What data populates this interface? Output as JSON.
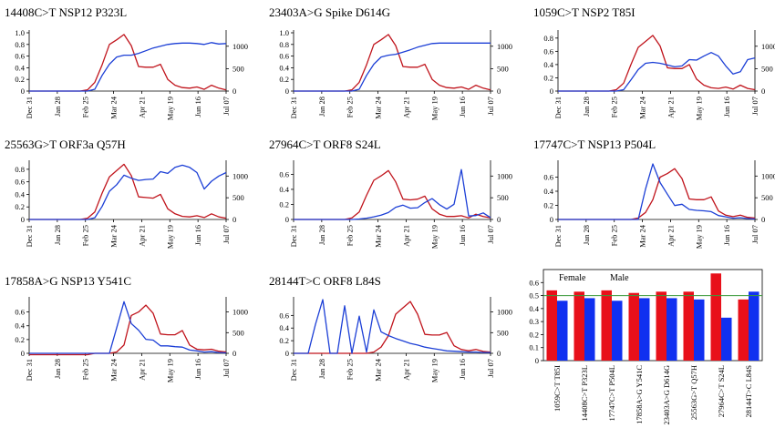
{
  "x_labels": [
    "Dec 31",
    "Jan 28",
    "Feb 25",
    "Mar 24",
    "Apr 21",
    "May 19",
    "Jun 16",
    "Jul 07"
  ],
  "colors": {
    "red_series": "#c0141c",
    "blue_series": "#1c3fd6",
    "red_bar": "#e8101a",
    "blue_bar": "#1030f0",
    "ref_line": "#3a9a3a"
  },
  "chart_data": [
    {
      "type": "line",
      "title": "14408C>T NSP12 P323L",
      "left_yticks": [
        "0",
        "0.2",
        "0.4",
        "0.6",
        "0.8",
        "1.0"
      ],
      "left_ylim": [
        0,
        1.0
      ],
      "right_yticks": [
        "0",
        "500",
        "1000"
      ],
      "right_ylim": [
        0,
        1300
      ],
      "series": [
        {
          "axis": "left",
          "color": "red",
          "values": [
            0,
            0,
            0,
            0,
            0,
            0,
            0,
            0,
            0.02,
            0.15,
            0.45,
            0.8,
            0.88,
            0.97,
            0.78,
            0.42,
            0.41,
            0.41,
            0.46,
            0.2,
            0.1,
            0.06,
            0.05,
            0.07,
            0.03,
            0.1,
            0.05,
            0.02
          ]
        },
        {
          "axis": "right",
          "color": "blue",
          "values": [
            0,
            0,
            0,
            0,
            0,
            0,
            0,
            0,
            0,
            40,
            350,
            600,
            760,
            800,
            800,
            840,
            900,
            960,
            1000,
            1040,
            1060,
            1070,
            1070,
            1060,
            1040,
            1080,
            1050,
            1060
          ]
        }
      ]
    },
    {
      "type": "line",
      "title": "23403A>G Spike D614G",
      "left_yticks": [
        "0",
        "0.2",
        "0.4",
        "0.6",
        "0.8",
        "1.0"
      ],
      "left_ylim": [
        0,
        1.0
      ],
      "right_yticks": [
        "0",
        "500",
        "1000"
      ],
      "right_ylim": [
        0,
        1300
      ],
      "series": [
        {
          "axis": "left",
          "color": "red",
          "values": [
            0,
            0,
            0,
            0,
            0,
            0,
            0,
            0,
            0.02,
            0.15,
            0.45,
            0.8,
            0.88,
            0.97,
            0.78,
            0.42,
            0.41,
            0.41,
            0.46,
            0.2,
            0.1,
            0.06,
            0.05,
            0.07,
            0.03,
            0.1,
            0.05,
            0.02
          ]
        },
        {
          "axis": "right",
          "color": "blue",
          "values": [
            0,
            0,
            0,
            0,
            0,
            0,
            0,
            0,
            0,
            40,
            350,
            600,
            760,
            800,
            820,
            870,
            920,
            980,
            1020,
            1060,
            1070,
            1070,
            1070,
            1070,
            1070,
            1070,
            1070,
            1070
          ]
        }
      ]
    },
    {
      "type": "line",
      "title": "1059C>T NSP2 T85I",
      "left_yticks": [
        "0",
        "0.2",
        "0.4",
        "0.6",
        "0.8"
      ],
      "left_ylim": [
        0,
        0.88
      ],
      "right_yticks": [
        "0",
        "500",
        "1000"
      ],
      "right_ylim": [
        0,
        1300
      ],
      "series": [
        {
          "axis": "left",
          "color": "red",
          "values": [
            0,
            0,
            0,
            0,
            0,
            0,
            0,
            0,
            0.02,
            0.12,
            0.4,
            0.66,
            0.75,
            0.84,
            0.68,
            0.35,
            0.34,
            0.34,
            0.4,
            0.18,
            0.09,
            0.05,
            0.04,
            0.06,
            0.03,
            0.09,
            0.04,
            0.02
          ]
        },
        {
          "axis": "right",
          "color": "blue",
          "values": [
            0,
            0,
            0,
            0,
            0,
            0,
            0,
            0,
            0,
            30,
            250,
            480,
            620,
            640,
            620,
            580,
            540,
            560,
            700,
            690,
            780,
            860,
            780,
            560,
            380,
            430,
            700,
            740
          ]
        }
      ]
    },
    {
      "type": "line",
      "title": "25563G>T ORF3a Q57H",
      "left_yticks": [
        "0",
        "0.2",
        "0.4",
        "0.6",
        "0.8"
      ],
      "left_ylim": [
        0,
        0.9
      ],
      "right_yticks": [
        "0",
        "500",
        "1000"
      ],
      "right_ylim": [
        0,
        1300
      ],
      "series": [
        {
          "axis": "left",
          "color": "red",
          "values": [
            0,
            0,
            0,
            0,
            0,
            0,
            0,
            0,
            0.02,
            0.12,
            0.42,
            0.68,
            0.78,
            0.88,
            0.7,
            0.36,
            0.35,
            0.34,
            0.4,
            0.17,
            0.09,
            0.05,
            0.04,
            0.06,
            0.03,
            0.09,
            0.04,
            0.02
          ]
        },
        {
          "axis": "right",
          "color": "blue",
          "values": [
            0,
            0,
            0,
            0,
            0,
            0,
            0,
            0,
            0,
            40,
            300,
            650,
            800,
            1020,
            950,
            900,
            920,
            930,
            1100,
            1060,
            1200,
            1250,
            1200,
            1080,
            700,
            880,
            1000,
            1080
          ]
        }
      ]
    },
    {
      "type": "line",
      "title": "27964C>T ORF8 S24L",
      "left_yticks": [
        "0",
        "0.2",
        "0.4",
        "0.6"
      ],
      "left_ylim": [
        0,
        0.75
      ],
      "right_yticks": [
        "0",
        "500",
        "1000"
      ],
      "right_ylim": [
        0,
        1300
      ],
      "series": [
        {
          "axis": "left",
          "color": "red",
          "values": [
            0,
            0,
            0,
            0,
            0,
            0,
            0,
            0,
            0.02,
            0.1,
            0.32,
            0.52,
            0.58,
            0.65,
            0.5,
            0.27,
            0.26,
            0.27,
            0.31,
            0.14,
            0.07,
            0.04,
            0.04,
            0.05,
            0.02,
            0.07,
            0.04,
            0.02
          ]
        },
        {
          "axis": "right",
          "color": "blue",
          "values": [
            0,
            0,
            0,
            0,
            0,
            0,
            0,
            0,
            0,
            10,
            30,
            60,
            100,
            160,
            280,
            330,
            260,
            270,
            390,
            480,
            340,
            240,
            350,
            1150,
            80,
            90,
            150,
            40
          ]
        }
      ]
    },
    {
      "type": "line",
      "title": "17747C>T NSP13 P504L",
      "left_yticks": [
        "0",
        "0.2",
        "0.4",
        "0.6"
      ],
      "left_ylim": [
        0,
        0.8
      ],
      "right_yticks": [
        "0",
        "500",
        "1000"
      ],
      "right_ylim": [
        0,
        1300
      ],
      "series": [
        {
          "axis": "left",
          "color": "red",
          "values": [
            0,
            0,
            0,
            0,
            0,
            0,
            0,
            0,
            0,
            0,
            0,
            0.02,
            0.1,
            0.28,
            0.6,
            0.65,
            0.72,
            0.58,
            0.29,
            0.28,
            0.28,
            0.32,
            0.12,
            0.06,
            0.04,
            0.06,
            0.03,
            0.02
          ]
        },
        {
          "axis": "right",
          "color": "blue",
          "values": [
            0,
            0,
            0,
            0,
            0,
            0,
            0,
            0,
            0,
            0,
            0,
            0,
            700,
            1280,
            850,
            580,
            320,
            350,
            230,
            210,
            200,
            180,
            90,
            60,
            30,
            40,
            20,
            10
          ]
        }
      ]
    },
    {
      "type": "line",
      "title": "17858A>G NSP13 Y541C",
      "left_yticks": [
        "0",
        "0.2",
        "0.4",
        "0.6"
      ],
      "left_ylim": [
        0,
        0.78
      ],
      "right_yticks": [
        "0",
        "500",
        "1000"
      ],
      "right_ylim": [
        0,
        1300
      ],
      "series": [
        {
          "axis": "left",
          "color": "red",
          "values": [
            -0.02,
            -0.02,
            -0.02,
            -0.02,
            -0.02,
            -0.02,
            -0.02,
            -0.02,
            -0.02,
            0,
            0,
            0,
            0.02,
            0.12,
            0.55,
            0.6,
            0.7,
            0.58,
            0.28,
            0.27,
            0.27,
            0.33,
            0.12,
            0.06,
            0.05,
            0.06,
            0.03,
            0.02
          ]
        },
        {
          "axis": "right",
          "color": "blue",
          "values": [
            0,
            0,
            0,
            0,
            0,
            0,
            0,
            0,
            0,
            0,
            0,
            0,
            620,
            1250,
            720,
            560,
            340,
            320,
            180,
            180,
            160,
            150,
            80,
            60,
            30,
            40,
            20,
            10
          ]
        }
      ]
    },
    {
      "type": "line",
      "title": "28144T>C ORF8 L84S",
      "left_yticks": [
        "0",
        "0.2",
        "0.4",
        "0.6"
      ],
      "left_ylim": [
        0,
        0.85
      ],
      "right_yticks": [
        "0",
        "500",
        "1000"
      ],
      "right_ylim": [
        0,
        1300
      ],
      "series": [
        {
          "axis": "left",
          "color": "red",
          "values": [
            0,
            0,
            0,
            0,
            0,
            0,
            0,
            0,
            0,
            0,
            0,
            0.02,
            0.1,
            0.28,
            0.62,
            0.72,
            0.82,
            0.62,
            0.3,
            0.29,
            0.29,
            0.33,
            0.12,
            0.06,
            0.04,
            0.06,
            0.03,
            0.02
          ]
        },
        {
          "axis": "right",
          "color": "blue",
          "values": [
            0,
            0,
            0,
            700,
            1300,
            0,
            0,
            1150,
            0,
            900,
            30,
            1050,
            520,
            430,
            360,
            300,
            240,
            200,
            150,
            120,
            90,
            60,
            50,
            40,
            30,
            30,
            20,
            20
          ]
        }
      ]
    },
    {
      "type": "bar",
      "legend": [
        "Female",
        "Male"
      ],
      "categories": [
        "1059C>T T85I",
        "14408C>T P323L",
        "17747C>T P504L",
        "17858A>G Y541C",
        "23403A>G D614G",
        "25563G>T Q57H",
        "27964C>T S24L",
        "28144T>C L84S"
      ],
      "series": [
        {
          "name": "Female",
          "color": "red",
          "values": [
            0.54,
            0.53,
            0.54,
            0.52,
            0.53,
            0.53,
            0.67,
            0.47
          ]
        },
        {
          "name": "Male",
          "color": "blue",
          "values": [
            0.46,
            0.48,
            0.46,
            0.48,
            0.48,
            0.47,
            0.33,
            0.53
          ]
        }
      ],
      "yticks": [
        "0",
        "0.1",
        "0.2",
        "0.3",
        "0.4",
        "0.5",
        "0.6"
      ],
      "ylim": [
        0,
        0.7
      ],
      "reference_line": 0.5
    }
  ]
}
